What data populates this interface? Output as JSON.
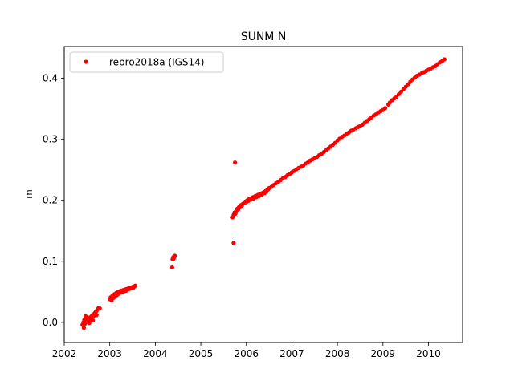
{
  "chart_data": {
    "type": "scatter",
    "title": "SUNM N",
    "xlabel": "",
    "ylabel": "m",
    "xlim": [
      2002.0,
      2010.75
    ],
    "ylim": [
      -0.033,
      0.452
    ],
    "x_ticks": [
      2002,
      2003,
      2004,
      2005,
      2006,
      2007,
      2008,
      2009,
      2010
    ],
    "x_tick_labels": [
      "2002",
      "2003",
      "2004",
      "2005",
      "2006",
      "2007",
      "2008",
      "2009",
      "2010"
    ],
    "y_ticks": [
      0.0,
      0.1,
      0.2,
      0.3,
      0.4
    ],
    "y_tick_labels": [
      "0.0",
      "0.1",
      "0.2",
      "0.3",
      "0.4"
    ],
    "grid": false,
    "legend_position": "top-left",
    "series": [
      {
        "name": "repro2018a (IGS14)",
        "color": "#ff0000",
        "marker": "dot",
        "points": [
          [
            2002.4,
            -0.004
          ],
          [
            2002.42,
            0.0
          ],
          [
            2002.44,
            0.004
          ],
          [
            2002.46,
            -0.002
          ],
          [
            2002.48,
            0.002
          ],
          [
            2002.5,
            0.006
          ],
          [
            2002.52,
            0.001
          ],
          [
            2002.54,
            0.005
          ],
          [
            2002.56,
            0.008
          ],
          [
            2002.58,
            0.004
          ],
          [
            2002.6,
            0.01
          ],
          [
            2002.62,
            0.012
          ],
          [
            2002.64,
            0.009
          ],
          [
            2002.66,
            0.014
          ],
          [
            2002.68,
            0.016
          ],
          [
            2002.7,
            0.018
          ],
          [
            2002.72,
            0.02
          ],
          [
            2002.74,
            0.022
          ],
          [
            2002.76,
            0.024
          ],
          [
            2002.78,
            0.023
          ],
          [
            2002.43,
            -0.009
          ],
          [
            2002.47,
            0.01
          ],
          [
            2002.55,
            -0.001
          ],
          [
            2002.63,
            0.003
          ],
          [
            2002.71,
            0.012
          ],
          [
            2003.0,
            0.038
          ],
          [
            2003.02,
            0.041
          ],
          [
            2003.04,
            0.036
          ],
          [
            2003.06,
            0.044
          ],
          [
            2003.08,
            0.04
          ],
          [
            2003.1,
            0.046
          ],
          [
            2003.12,
            0.042
          ],
          [
            2003.14,
            0.048
          ],
          [
            2003.16,
            0.045
          ],
          [
            2003.18,
            0.05
          ],
          [
            2003.2,
            0.047
          ],
          [
            2003.22,
            0.051
          ],
          [
            2003.24,
            0.049
          ],
          [
            2003.26,
            0.052
          ],
          [
            2003.28,
            0.05
          ],
          [
            2003.3,
            0.053
          ],
          [
            2003.32,
            0.051
          ],
          [
            2003.34,
            0.054
          ],
          [
            2003.36,
            0.052
          ],
          [
            2003.38,
            0.055
          ],
          [
            2003.4,
            0.054
          ],
          [
            2003.42,
            0.056
          ],
          [
            2003.44,
            0.055
          ],
          [
            2003.46,
            0.057
          ],
          [
            2003.48,
            0.056
          ],
          [
            2003.5,
            0.058
          ],
          [
            2003.52,
            0.057
          ],
          [
            2003.54,
            0.059
          ],
          [
            2003.56,
            0.06
          ],
          [
            2004.37,
            0.09
          ],
          [
            2004.38,
            0.103
          ],
          [
            2004.39,
            0.106
          ],
          [
            2004.4,
            0.104
          ],
          [
            2004.41,
            0.108
          ],
          [
            2004.42,
            0.107
          ],
          [
            2004.43,
            0.109
          ],
          [
            2005.72,
            0.13
          ],
          [
            2005.75,
            0.262
          ],
          [
            2005.7,
            0.172
          ],
          [
            2005.72,
            0.176
          ],
          [
            2005.74,
            0.18
          ],
          [
            2005.76,
            0.178
          ],
          [
            2005.78,
            0.183
          ],
          [
            2005.8,
            0.186
          ],
          [
            2005.82,
            0.185
          ],
          [
            2005.84,
            0.189
          ],
          [
            2005.86,
            0.19
          ],
          [
            2005.88,
            0.192
          ],
          [
            2005.9,
            0.191
          ],
          [
            2005.92,
            0.194
          ],
          [
            2005.94,
            0.195
          ],
          [
            2005.96,
            0.196
          ],
          [
            2005.98,
            0.198
          ],
          [
            2006.0,
            0.197
          ],
          [
            2006.02,
            0.2
          ],
          [
            2006.04,
            0.199
          ],
          [
            2006.06,
            0.202
          ],
          [
            2006.08,
            0.203
          ],
          [
            2006.1,
            0.201
          ],
          [
            2006.12,
            0.204
          ],
          [
            2006.14,
            0.205
          ],
          [
            2006.16,
            0.203
          ],
          [
            2006.18,
            0.206
          ],
          [
            2006.2,
            0.207
          ],
          [
            2006.22,
            0.205
          ],
          [
            2006.24,
            0.208
          ],
          [
            2006.26,
            0.209
          ],
          [
            2006.28,
            0.207
          ],
          [
            2006.3,
            0.21
          ],
          [
            2006.32,
            0.211
          ],
          [
            2006.34,
            0.209
          ],
          [
            2006.36,
            0.212
          ],
          [
            2006.38,
            0.213
          ],
          [
            2006.4,
            0.212
          ],
          [
            2006.42,
            0.215
          ],
          [
            2006.44,
            0.214
          ],
          [
            2006.46,
            0.217
          ],
          [
            2006.48,
            0.218
          ],
          [
            2006.5,
            0.22
          ],
          [
            2006.55,
            0.222
          ],
          [
            2006.6,
            0.225
          ],
          [
            2006.65,
            0.228
          ],
          [
            2006.7,
            0.23
          ],
          [
            2006.75,
            0.233
          ],
          [
            2006.8,
            0.236
          ],
          [
            2006.85,
            0.238
          ],
          [
            2006.9,
            0.241
          ],
          [
            2006.95,
            0.243
          ],
          [
            2007.0,
            0.246
          ],
          [
            2007.05,
            0.248
          ],
          [
            2007.1,
            0.251
          ],
          [
            2007.15,
            0.253
          ],
          [
            2007.2,
            0.255
          ],
          [
            2007.25,
            0.257
          ],
          [
            2007.3,
            0.26
          ],
          [
            2007.35,
            0.262
          ],
          [
            2007.4,
            0.265
          ],
          [
            2007.45,
            0.267
          ],
          [
            2007.5,
            0.269
          ],
          [
            2007.55,
            0.271
          ],
          [
            2007.6,
            0.274
          ],
          [
            2007.65,
            0.276
          ],
          [
            2007.7,
            0.279
          ],
          [
            2007.75,
            0.282
          ],
          [
            2007.8,
            0.285
          ],
          [
            2007.85,
            0.288
          ],
          [
            2007.9,
            0.291
          ],
          [
            2007.95,
            0.294
          ],
          [
            2008.0,
            0.298
          ],
          [
            2008.05,
            0.301
          ],
          [
            2008.1,
            0.304
          ],
          [
            2008.15,
            0.306
          ],
          [
            2008.2,
            0.309
          ],
          [
            2008.25,
            0.311
          ],
          [
            2008.3,
            0.314
          ],
          [
            2008.35,
            0.316
          ],
          [
            2008.4,
            0.318
          ],
          [
            2008.45,
            0.32
          ],
          [
            2008.5,
            0.322
          ],
          [
            2008.55,
            0.324
          ],
          [
            2008.6,
            0.327
          ],
          [
            2008.65,
            0.33
          ],
          [
            2008.7,
            0.333
          ],
          [
            2008.75,
            0.336
          ],
          [
            2008.8,
            0.339
          ],
          [
            2008.85,
            0.341
          ],
          [
            2008.9,
            0.344
          ],
          [
            2008.95,
            0.346
          ],
          [
            2009.0,
            0.348
          ],
          [
            2009.05,
            0.351
          ],
          [
            2009.12,
            0.357
          ],
          [
            2009.15,
            0.36
          ],
          [
            2009.2,
            0.364
          ],
          [
            2009.25,
            0.367
          ],
          [
            2009.3,
            0.37
          ],
          [
            2009.35,
            0.374
          ],
          [
            2009.4,
            0.378
          ],
          [
            2009.45,
            0.382
          ],
          [
            2009.5,
            0.386
          ],
          [
            2009.55,
            0.39
          ],
          [
            2009.6,
            0.394
          ],
          [
            2009.65,
            0.398
          ],
          [
            2009.7,
            0.401
          ],
          [
            2009.75,
            0.404
          ],
          [
            2009.8,
            0.406
          ],
          [
            2009.85,
            0.408
          ],
          [
            2009.9,
            0.41
          ],
          [
            2009.95,
            0.412
          ],
          [
            2010.0,
            0.414
          ],
          [
            2010.05,
            0.416
          ],
          [
            2010.1,
            0.418
          ],
          [
            2010.15,
            0.42
          ],
          [
            2010.2,
            0.423
          ],
          [
            2010.25,
            0.426
          ],
          [
            2010.3,
            0.428
          ],
          [
            2010.35,
            0.431
          ]
        ]
      }
    ]
  }
}
